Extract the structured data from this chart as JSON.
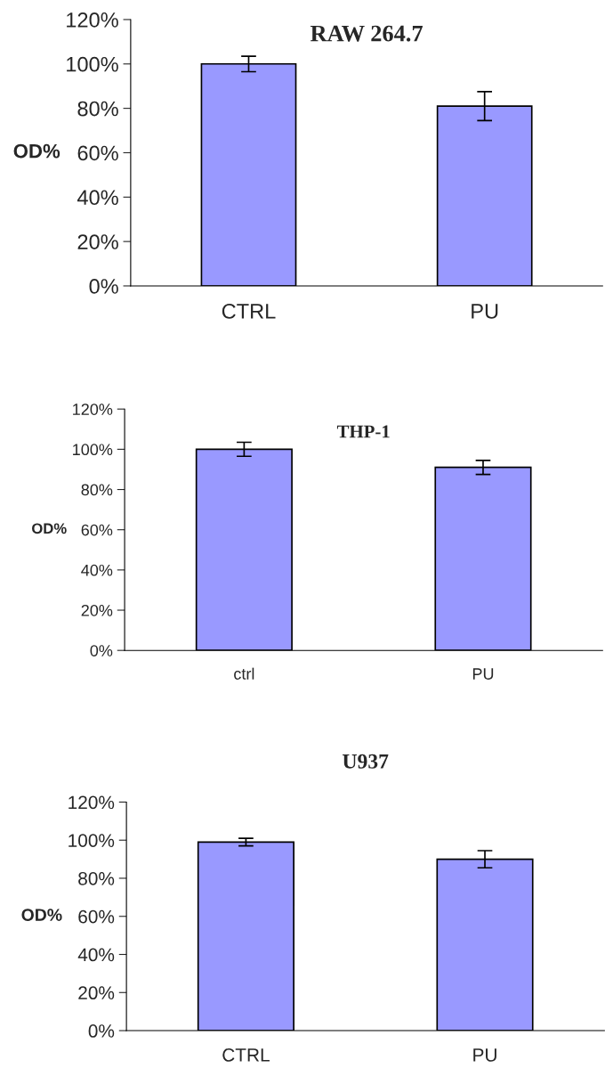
{
  "chart_data": [
    {
      "type": "bar",
      "title": "RAW 264.7",
      "ylabel": "OD%",
      "categories": [
        "CTRL",
        "PU"
      ],
      "values": [
        100,
        81
      ],
      "errors": [
        3.5,
        6.5
      ],
      "color": "#9999ff",
      "ylim": [
        0,
        120
      ],
      "yticks": [
        {
          "value": 0,
          "label": "0%"
        },
        {
          "value": 20,
          "label": "20%"
        },
        {
          "value": 40,
          "label": "40%"
        },
        {
          "value": 60,
          "label": "60%"
        },
        {
          "value": 80,
          "label": "80%"
        },
        {
          "value": 100,
          "label": "100%"
        },
        {
          "value": 120,
          "label": "120%"
        }
      ],
      "grid": false
    },
    {
      "type": "bar",
      "title": "THP-1",
      "ylabel": "OD%",
      "categories": [
        "ctrl",
        "PU"
      ],
      "values": [
        100,
        91
      ],
      "errors": [
        3.5,
        3.5
      ],
      "color": "#9999ff",
      "ylim": [
        0,
        120
      ],
      "yticks": [
        {
          "value": 0,
          "label": "0%"
        },
        {
          "value": 20,
          "label": "20%"
        },
        {
          "value": 40,
          "label": "40%"
        },
        {
          "value": 60,
          "label": "60%"
        },
        {
          "value": 80,
          "label": "80%"
        },
        {
          "value": 100,
          "label": "100%"
        },
        {
          "value": 120,
          "label": "120%"
        }
      ],
      "grid": false
    },
    {
      "type": "bar",
      "title": "U937",
      "ylabel": "OD%",
      "categories": [
        "CTRL",
        "PU"
      ],
      "values": [
        99,
        90
      ],
      "errors": [
        2,
        4.5
      ],
      "color": "#9999ff",
      "ylim": [
        0,
        120
      ],
      "yticks": [
        {
          "value": 0,
          "label": "0%"
        },
        {
          "value": 20,
          "label": "20%"
        },
        {
          "value": 40,
          "label": "40%"
        },
        {
          "value": 60,
          "label": "60%"
        },
        {
          "value": 80,
          "label": "80%"
        },
        {
          "value": 100,
          "label": "100%"
        },
        {
          "value": 120,
          "label": "120%"
        }
      ],
      "grid": false
    }
  ]
}
